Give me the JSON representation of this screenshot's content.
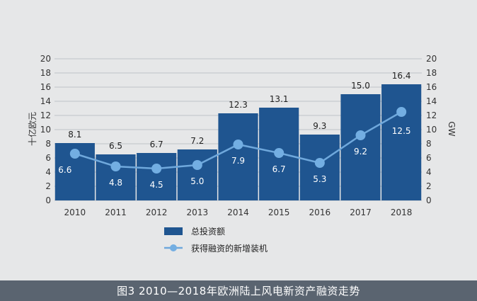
{
  "caption": "图3 2010—2018年欧洲陆上风电新资产融资走势",
  "colors": {
    "bar": "#1f5590",
    "line": "#6fa8dc",
    "marker": "#73aee2",
    "caption_bg": "#5a6470"
  },
  "chart_data": {
    "type": "bar",
    "categories": [
      "2010",
      "2011",
      "2012",
      "2013",
      "2014",
      "2015",
      "2016",
      "2017",
      "2018"
    ],
    "series": [
      {
        "name": "总投资额",
        "type": "bar",
        "axis": "left",
        "values": [
          8.1,
          6.5,
          6.7,
          7.2,
          12.3,
          13.1,
          9.3,
          15.0,
          16.4
        ],
        "labels": [
          "8.1",
          "6.5",
          "6.7",
          "7.2",
          "12.3",
          "13.1",
          "9.3",
          "15.0",
          "16.4"
        ]
      },
      {
        "name": "获得融资的新增装机",
        "type": "line",
        "axis": "right",
        "values": [
          6.6,
          4.8,
          4.5,
          5.0,
          7.9,
          6.7,
          5.3,
          9.2,
          12.5
        ],
        "labels": [
          "6.6",
          "4.8",
          "4.5",
          "5.0",
          "7.9",
          "6.7",
          "5.3",
          "9.2",
          "12.5"
        ]
      }
    ],
    "ylabel": "十亿欧元",
    "y2label": "GW",
    "ylim": [
      0,
      20
    ],
    "y2lim": [
      0,
      20
    ],
    "yticks": [
      "0",
      "2",
      "4",
      "6",
      "8",
      "10",
      "12",
      "14",
      "16",
      "18",
      "20"
    ],
    "y2ticks": [
      "0",
      "2",
      "4",
      "6",
      "8",
      "10",
      "12",
      "14",
      "16",
      "18",
      "20"
    ],
    "grid": true,
    "legend_position": "bottom"
  }
}
